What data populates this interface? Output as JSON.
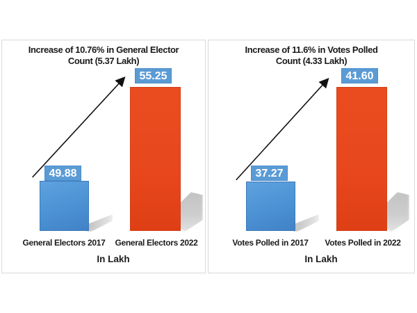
{
  "page": {
    "background_color": "#ffffff",
    "panel_border_color": "#d9d9d9",
    "label_box_color": "#5b9bd5",
    "blue_bar_color": "#4e95d6",
    "red_bar_color": "#e8471d",
    "arrow_color": "#111111"
  },
  "chart_data": [
    {
      "type": "bar",
      "title": "Increase of 10.76% in General Elector Count (5.37 Lakh)",
      "title_line1": "Increase of 10.76% in General Elector",
      "title_line2": "Count (5.37 Lakh)",
      "categories": [
        "General Electors 2017",
        "General Electors 2022"
      ],
      "values": [
        49.88,
        55.25
      ],
      "data_labels": [
        "49.88",
        "55.25"
      ],
      "xlabel": "In Lakh",
      "ylabel": "",
      "ylim": [
        47,
        56
      ],
      "bar_colors": [
        "#4e95d6",
        "#e8471d"
      ],
      "grid": false,
      "legend_position": "none",
      "annotation": "upward-trend-arrow"
    },
    {
      "type": "bar",
      "title": "Increase of 11.6% in Votes Polled Count (4.33 Lakh)",
      "title_line1": "Increase of 11.6% in Votes Polled",
      "title_line2": "Count (4.33 Lakh)",
      "categories": [
        "Votes Polled in 2017",
        "Votes Polled in 2022"
      ],
      "values": [
        37.27,
        41.6
      ],
      "data_labels": [
        "37.27",
        "41.60"
      ],
      "xlabel": "In Lakh",
      "ylabel": "",
      "ylim": [
        35,
        42
      ],
      "bar_colors": [
        "#4e95d6",
        "#e8471d"
      ],
      "grid": false,
      "legend_position": "none",
      "annotation": "upward-trend-arrow"
    }
  ]
}
